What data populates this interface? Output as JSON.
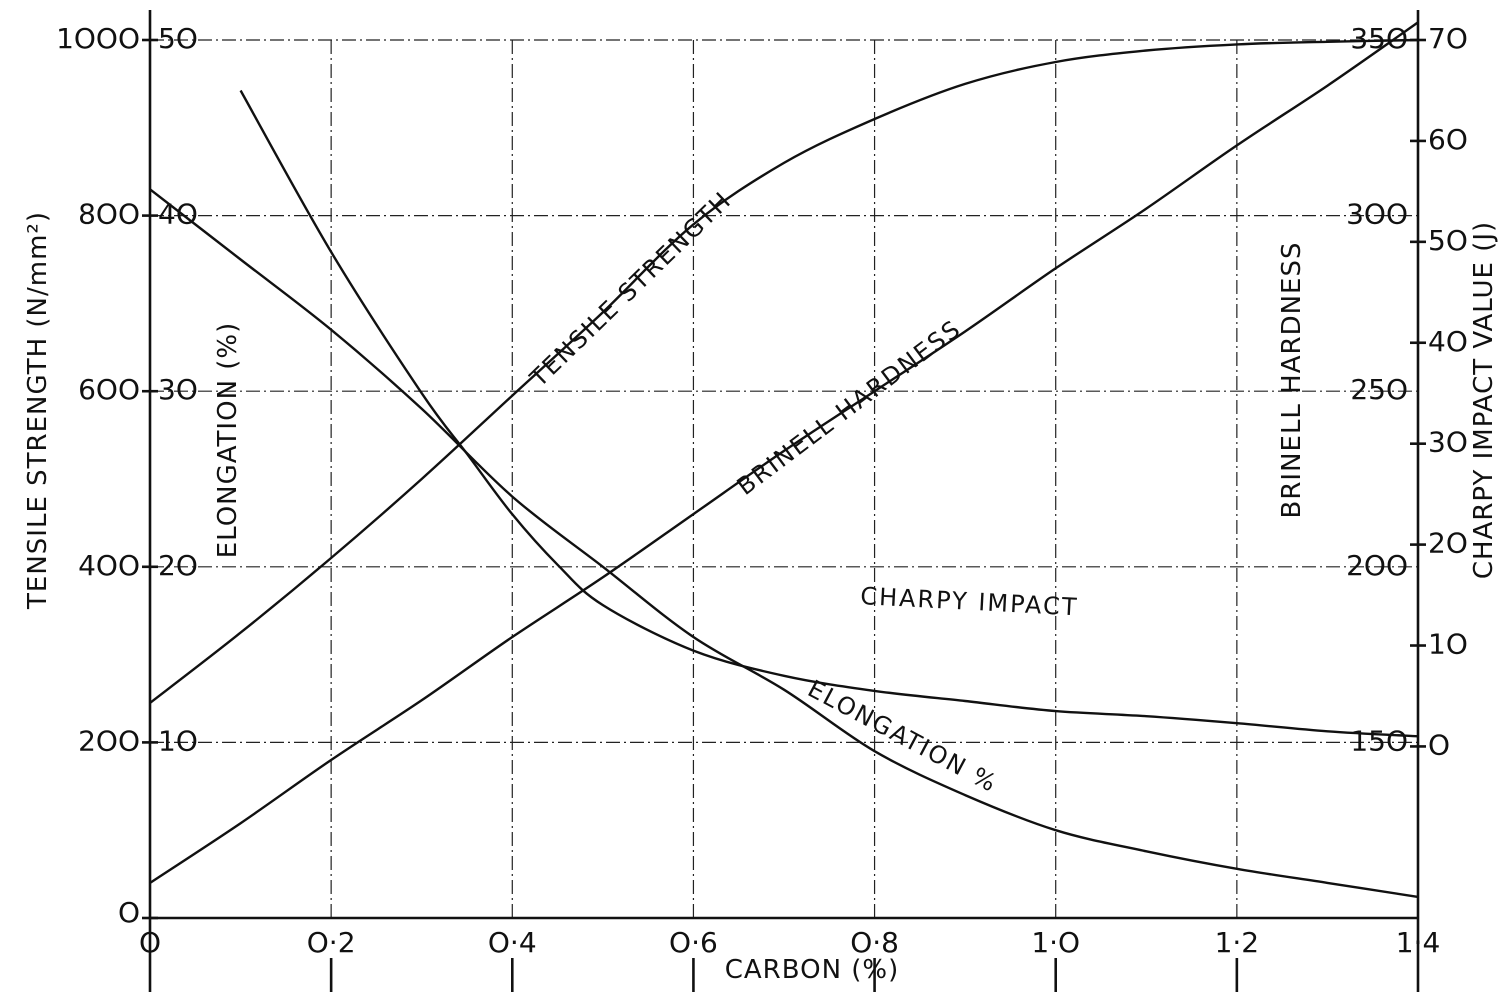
{
  "chart_data": {
    "type": "line",
    "title": "",
    "x_axis": {
      "label": "CARBON (%)",
      "range": [
        0,
        1.4
      ],
      "ticks": [
        0,
        0.2,
        0.4,
        0.6,
        0.8,
        1.0,
        1.2,
        1.4
      ],
      "tick_labels": [
        "O",
        "O·2",
        "O·4",
        "O·6",
        "O·8",
        "1·O",
        "1·2",
        "1·4"
      ]
    },
    "y_axes": [
      {
        "id": "tensile",
        "label": "TENSILE STRENGTH (N/mm²)",
        "range": [
          0,
          1000
        ],
        "ticks": [
          0,
          200,
          400,
          600,
          800,
          1000
        ],
        "tick_labels": [
          "O",
          "2OO",
          "4OO",
          "6OO",
          "8OO",
          "1OOO"
        ]
      },
      {
        "id": "elongation",
        "label": "ELONGATION (%)",
        "range": [
          0,
          50
        ],
        "ticks": [
          10,
          20,
          30,
          40,
          50
        ],
        "tick_labels": [
          "1O",
          "2O",
          "3O",
          "4O",
          "5O"
        ]
      },
      {
        "id": "brinell",
        "label": "BRINELL HARDNESS",
        "range": [
          100,
          350
        ],
        "ticks": [
          150,
          200,
          250,
          300,
          350
        ],
        "tick_labels": [
          "15O",
          "2OO",
          "25O",
          "3OO",
          "35O"
        ]
      },
      {
        "id": "charpy",
        "label": "CHARPY IMPACT VALUE (J)",
        "range": [
          -17,
          70
        ],
        "ticks": [
          0,
          10,
          20,
          30,
          40,
          50,
          60,
          70
        ],
        "tick_labels": [
          "O",
          "1O",
          "2O",
          "3O",
          "4O",
          "5O",
          "6O",
          "7O"
        ]
      }
    ],
    "grid": true,
    "series": [
      {
        "name": "TENSILE STRENGTH",
        "axis": "tensile",
        "x": [
          0,
          0.1,
          0.2,
          0.3,
          0.4,
          0.5,
          0.6,
          0.7,
          0.8,
          0.9,
          1.0,
          1.1,
          1.2,
          1.3,
          1.4
        ],
        "y": [
          245,
          325,
          410,
          500,
          595,
          690,
          790,
          860,
          910,
          950,
          975,
          988,
          995,
          998,
          1000
        ]
      },
      {
        "name": "BRINELL HARDNESS",
        "axis": "brinell",
        "x": [
          0,
          0.1,
          0.2,
          0.3,
          0.4,
          0.5,
          0.6,
          0.7,
          0.8,
          0.9,
          1.0,
          1.1,
          1.2,
          1.3,
          1.4
        ],
        "y": [
          110,
          127,
          145,
          162,
          180,
          197,
          215,
          233,
          250,
          267,
          285,
          302,
          320,
          337,
          355
        ]
      },
      {
        "name": "CHARPY IMPACT",
        "axis": "charpy",
        "x": [
          0.1,
          0.2,
          0.3,
          0.35,
          0.4,
          0.45,
          0.5,
          0.6,
          0.7,
          0.8,
          0.9,
          1.0,
          1.1,
          1.2,
          1.3,
          1.4
        ],
        "y": [
          65,
          49,
          35,
          29,
          23,
          18,
          14,
          9.5,
          7,
          5.5,
          4.5,
          3.5,
          3,
          2.3,
          1.5,
          1
        ]
      },
      {
        "name": "ELONGATION %",
        "axis": "elongation",
        "x": [
          0,
          0.1,
          0.2,
          0.3,
          0.4,
          0.5,
          0.6,
          0.7,
          0.8,
          0.9,
          1.0,
          1.1,
          1.2,
          1.3,
          1.4
        ],
        "y": [
          41.5,
          37.5,
          33.5,
          29,
          24,
          20,
          16,
          13,
          9.5,
          7,
          5,
          3.8,
          2.8,
          2,
          1.2
        ]
      }
    ],
    "annotations": [
      "TENSILE STRENGTH",
      "BRINELL HARDNESS",
      "CHARPY IMPACT",
      "ELONGATION %"
    ]
  }
}
